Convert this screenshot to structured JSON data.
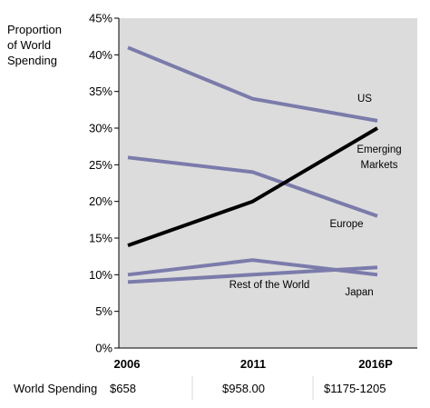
{
  "chart_data": {
    "type": "line",
    "ylabel_lines": [
      "Proportion",
      "of World",
      "Spending"
    ],
    "categories": [
      "2006",
      "2011",
      "2016P"
    ],
    "ylim": [
      0,
      45
    ],
    "yticks": [
      0,
      5,
      10,
      15,
      20,
      25,
      30,
      35,
      40,
      45
    ],
    "ytick_labels": [
      "0%",
      "5%",
      "10%",
      "15%",
      "20%",
      "25%",
      "30%",
      "35%",
      "40%",
      "45%"
    ],
    "grid": false,
    "series": [
      {
        "name": "US",
        "values": [
          41,
          34,
          31
        ],
        "color": "#7b7bab"
      },
      {
        "name": "Europe",
        "values": [
          26,
          24,
          18
        ],
        "color": "#7b7bab"
      },
      {
        "name": "Japan",
        "values": [
          10,
          12,
          10
        ],
        "color": "#7b7bab"
      },
      {
        "name": "Rest of the World",
        "values": [
          9,
          10,
          11
        ],
        "color": "#7b7bab"
      },
      {
        "name": "Emerging Markets",
        "values": [
          14,
          20,
          30
        ],
        "color": "#000000"
      }
    ],
    "plot_background": "#dcdcdc",
    "table": {
      "label": "World Spending",
      "values": [
        "$658",
        "$958.00",
        "$1175-1205"
      ]
    }
  }
}
